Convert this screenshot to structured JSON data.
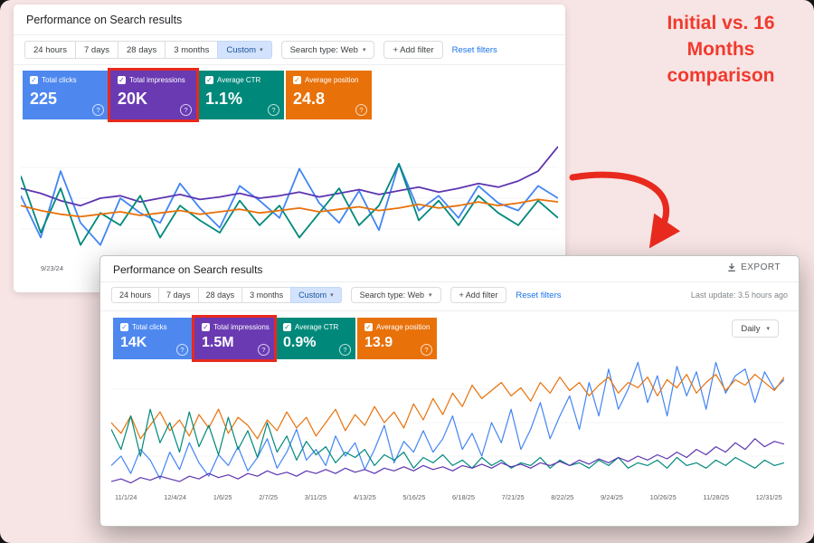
{
  "canvas": {
    "background": "#f7e4e4"
  },
  "annotation": {
    "text": "Initial vs. 16 Months comparison",
    "color": "#f03a2e"
  },
  "colors": {
    "highlight_frame": "#e8291e",
    "link": "#1a73e8"
  },
  "panel_initial": {
    "title": "Performance on Search results",
    "date_ranges": [
      "24 hours",
      "7 days",
      "28 days",
      "3 months",
      "Custom"
    ],
    "active_range": "Custom",
    "search_type_label": "Search type: Web",
    "add_filter_label": "+ Add filter",
    "reset_filters_label": "Reset filters",
    "metrics": [
      {
        "label": "Total clicks",
        "value": "225",
        "color": "#4e88ef",
        "highlighted": false
      },
      {
        "label": "Total impressions",
        "value": "20K",
        "color": "#6a3ab2",
        "highlighted": true
      },
      {
        "label": "Average CTR",
        "value": "1.1%",
        "color": "#00897b",
        "highlighted": false
      },
      {
        "label": "Average position",
        "value": "24.8",
        "color": "#e8710a",
        "highlighted": false
      }
    ],
    "first_x_label": "9/23/24"
  },
  "panel_full": {
    "title": "Performance on Search results",
    "export_label": "EXPORT",
    "last_update": "Last update: 3.5 hours ago",
    "date_ranges": [
      "24 hours",
      "7 days",
      "28 days",
      "3 months",
      "Custom"
    ],
    "active_range": "Custom",
    "search_type_label": "Search type: Web",
    "add_filter_label": "+ Add filter",
    "reset_filters_label": "Reset filters",
    "granularity": "Daily",
    "metrics": [
      {
        "label": "Total clicks",
        "value": "14K",
        "color": "#4e88ef",
        "highlighted": false
      },
      {
        "label": "Total impressions",
        "value": "1.5M",
        "color": "#6a3ab2",
        "highlighted": true
      },
      {
        "label": "Average CTR",
        "value": "0.9%",
        "color": "#00897b",
        "highlighted": false
      },
      {
        "label": "Average position",
        "value": "13.9",
        "color": "#e8710a",
        "highlighted": false
      }
    ],
    "x_labels": [
      "11/1/24",
      "12/4/24",
      "1/6/25",
      "2/7/25",
      "3/11/25",
      "4/13/25",
      "5/16/25",
      "6/18/25",
      "7/21/25",
      "8/22/25",
      "9/24/25",
      "10/26/25",
      "11/28/25",
      "12/31/25"
    ]
  },
  "chart_data": [
    {
      "id": "initial",
      "type": "line",
      "title": "Performance on Search results",
      "x_labels": [
        "9/23/24"
      ],
      "ylim": [
        0,
        100
      ],
      "stroke_width": 1.8,
      "legend": "none",
      "grid": false,
      "series": [
        {
          "name": "Clicks",
          "color": "#4285f4",
          "values": [
            52,
            18,
            72,
            30,
            12,
            50,
            38,
            30,
            62,
            42,
            26,
            60,
            48,
            34,
            74,
            46,
            30,
            56,
            24,
            78,
            40,
            52,
            34,
            60,
            46,
            40,
            60,
            50
          ]
        },
        {
          "name": "Impressions",
          "color": "#5e35b1",
          "values": [
            58,
            54,
            48,
            44,
            50,
            52,
            47,
            50,
            53,
            49,
            51,
            54,
            50,
            52,
            55,
            51,
            54,
            57,
            53,
            56,
            59,
            55,
            58,
            62,
            59,
            64,
            72,
            92
          ]
        },
        {
          "name": "CTR",
          "color": "#00897b",
          "values": [
            68,
            22,
            58,
            12,
            38,
            28,
            52,
            18,
            44,
            32,
            22,
            48,
            28,
            44,
            18,
            38,
            58,
            28,
            44,
            78,
            32,
            48,
            28,
            52,
            38,
            28,
            48,
            34
          ]
        },
        {
          "name": "Position",
          "color": "#e8710a",
          "values": [
            44,
            40,
            37,
            35,
            37,
            39,
            36,
            38,
            40,
            37,
            39,
            41,
            38,
            40,
            42,
            39,
            41,
            43,
            40,
            42,
            45,
            42,
            44,
            47,
            44,
            46,
            49,
            47
          ]
        }
      ]
    },
    {
      "id": "full",
      "type": "line",
      "title": "Performance on Search results (16 months, daily)",
      "x_labels": [
        "11/1/24",
        "12/4/24",
        "1/6/25",
        "2/7/25",
        "3/11/25",
        "4/13/25",
        "5/16/25",
        "6/18/25",
        "7/21/25",
        "8/22/25",
        "9/24/25",
        "10/26/25",
        "11/28/25",
        "12/31/25"
      ],
      "ylim": [
        0,
        100
      ],
      "stroke_width": 1.2,
      "legend": "none",
      "grid": false,
      "series": [
        {
          "name": "Clicks",
          "color": "#4285f4",
          "values": [
            18,
            25,
            12,
            30,
            22,
            8,
            28,
            15,
            35,
            20,
            10,
            26,
            18,
            32,
            14,
            24,
            38,
            16,
            28,
            45,
            22,
            30,
            18,
            40,
            25,
            35,
            15,
            30,
            48,
            20,
            36,
            28,
            44,
            28,
            38,
            55,
            30,
            42,
            25,
            50,
            35,
            60,
            30,
            45,
            65,
            38,
            55,
            70,
            45,
            80,
            55,
            90,
            60,
            75,
            95,
            65,
            85,
            55,
            92,
            70,
            88,
            60,
            95,
            72,
            85,
            90,
            65,
            88,
            75,
            82
          ]
        },
        {
          "name": "Position",
          "color": "#e8710a",
          "values": [
            50,
            42,
            55,
            38,
            48,
            58,
            44,
            52,
            40,
            56,
            46,
            60,
            42,
            54,
            48,
            38,
            52,
            44,
            58,
            46,
            54,
            40,
            50,
            60,
            44,
            56,
            48,
            62,
            50,
            58,
            46,
            64,
            52,
            68,
            56,
            72,
            62,
            78,
            68,
            74,
            80,
            70,
            76,
            66,
            80,
            72,
            84,
            74,
            80,
            70,
            78,
            84,
            72,
            80,
            76,
            84,
            70,
            82,
            76,
            86,
            72,
            80,
            86,
            74,
            82,
            78,
            86,
            80,
            74,
            84
          ]
        },
        {
          "name": "CTR",
          "color": "#00897b",
          "values": [
            45,
            30,
            55,
            25,
            60,
            35,
            50,
            28,
            58,
            32,
            48,
            26,
            54,
            30,
            44,
            24,
            50,
            28,
            40,
            22,
            36,
            26,
            32,
            20,
            28,
            24,
            30,
            18,
            26,
            22,
            28,
            16,
            24,
            20,
            26,
            18,
            22,
            16,
            24,
            18,
            22,
            16,
            20,
            18,
            24,
            16,
            22,
            18,
            20,
            16,
            22,
            18,
            24,
            16,
            20,
            18,
            22,
            16,
            24,
            18,
            20,
            16,
            22,
            18,
            24,
            20,
            16,
            22,
            18,
            20
          ]
        },
        {
          "name": "Impressions",
          "color": "#5e35b1",
          "values": [
            6,
            8,
            5,
            9,
            7,
            10,
            8,
            6,
            10,
            8,
            12,
            9,
            11,
            8,
            12,
            10,
            14,
            11,
            13,
            10,
            14,
            12,
            15,
            12,
            16,
            13,
            15,
            12,
            16,
            14,
            17,
            14,
            18,
            15,
            17,
            14,
            18,
            16,
            19,
            16,
            20,
            17,
            19,
            16,
            20,
            18,
            21,
            18,
            22,
            19,
            23,
            20,
            24,
            21,
            25,
            22,
            26,
            23,
            28,
            24,
            30,
            26,
            32,
            28,
            35,
            30,
            38,
            32,
            36,
            34
          ]
        }
      ]
    }
  ]
}
